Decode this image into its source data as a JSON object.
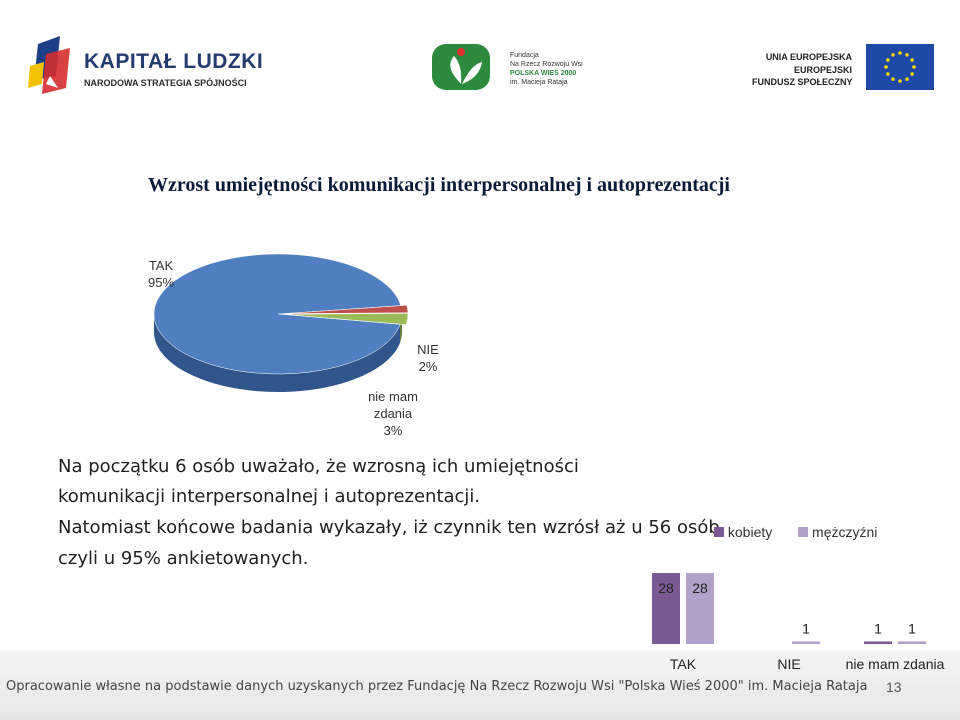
{
  "logos": {
    "kapital_title": "KAPITAŁ LUDZKI",
    "kapital_subtitle": "NARODOWA STRATEGIA SPÓJNOŚCI",
    "fundacja_line1": "Fundacja",
    "fundacja_line2": "Na Rzecz Rozwoju Wsi",
    "fundacja_line3": "POLSKA WIEŚ 2000",
    "fundacja_line4": "im. Macieja Rataja",
    "ue_line1": "UNIA EUROPEJSKA",
    "ue_line2": "EUROPEJSKI",
    "ue_line3": "FUNDUSZ SPOŁECZNY"
  },
  "slide": {
    "title": "Wzrost umiejętności komunikacji interpersonalnej i autoprezentacji",
    "paragraph_lines": [
      "Na początku 6 osób uważało, że wzrosną ich umiejętności",
      "komunikacji interpersonalnej i autoprezentacji.",
      "Natomiast końcowe badania wykazały, iż czynnik ten wzrósł aż u 56 osób,",
      "czyli u 95% ankietowanych."
    ],
    "footer": "Opracowanie własne na podstawie danych uzyskanych przez Fundację Na Rzecz Rozwoju Wsi \"Polska Wieś 2000\" im. Macieja Rataja",
    "page_number": "13"
  },
  "chart_data": [
    {
      "type": "pie",
      "title": "",
      "slices": [
        {
          "label": "TAK",
          "value": 95,
          "value_label": "95%",
          "color": "#4f7fc0"
        },
        {
          "label": "NIE",
          "value": 2,
          "value_label": "2%",
          "color": "#c0504d"
        },
        {
          "label_lines": [
            "nie mam",
            "zdania"
          ],
          "value": 3,
          "value_label": "3%",
          "color": "#9bbb59"
        }
      ]
    },
    {
      "type": "bar",
      "title": "",
      "categories": [
        "TAK",
        "NIE",
        "nie mam zdania"
      ],
      "series": [
        {
          "name": "kobiety",
          "values": [
            28,
            0,
            1
          ],
          "labels": [
            "28",
            "",
            "1"
          ],
          "color": "#7b5a94"
        },
        {
          "name": "mężczyźni",
          "values": [
            28,
            1,
            1
          ],
          "labels": [
            "28",
            "1",
            "1"
          ],
          "color": "#b1a0c7"
        }
      ],
      "ylim": [
        0,
        30
      ],
      "legend": "top-right"
    }
  ]
}
